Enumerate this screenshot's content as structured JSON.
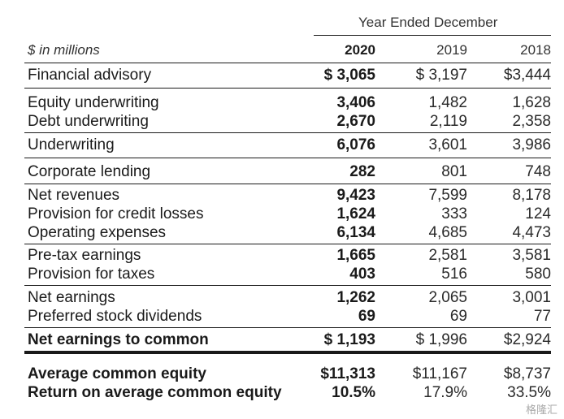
{
  "header": {
    "period_title": "Year Ended December",
    "units_label": "$ in millions",
    "years": [
      "2020",
      "2019",
      "2018"
    ]
  },
  "rows": [
    {
      "label": "Financial advisory",
      "v2020": "$ 3,065",
      "v2019": "$ 3,197",
      "v2018": "$3,444"
    },
    {
      "label": "Equity underwriting",
      "v2020": "3,406",
      "v2019": "1,482",
      "v2018": "1,628"
    },
    {
      "label": "Debt underwriting",
      "v2020": "2,670",
      "v2019": "2,119",
      "v2018": "2,358"
    },
    {
      "label": "Underwriting",
      "v2020": "6,076",
      "v2019": "3,601",
      "v2018": "3,986"
    },
    {
      "label": "Corporate lending",
      "v2020": "282",
      "v2019": "801",
      "v2018": "748"
    },
    {
      "label": "Net revenues",
      "v2020": "9,423",
      "v2019": "7,599",
      "v2018": "8,178"
    },
    {
      "label": "Provision for credit losses",
      "v2020": "1,624",
      "v2019": "333",
      "v2018": "124"
    },
    {
      "label": "Operating expenses",
      "v2020": "6,134",
      "v2019": "4,685",
      "v2018": "4,473"
    },
    {
      "label": "Pre-tax earnings",
      "v2020": "1,665",
      "v2019": "2,581",
      "v2018": "3,581"
    },
    {
      "label": "Provision for taxes",
      "v2020": "403",
      "v2019": "516",
      "v2018": "580"
    },
    {
      "label": "Net earnings",
      "v2020": "1,262",
      "v2019": "2,065",
      "v2018": "3,001"
    },
    {
      "label": "Preferred stock dividends",
      "v2020": "69",
      "v2019": "69",
      "v2018": "77"
    },
    {
      "label": "Net earnings to common",
      "v2020": "$ 1,193",
      "v2019": "$ 1,996",
      "v2018": "$2,924"
    },
    {
      "label": "Average common equity",
      "v2020": "$11,313",
      "v2019": "$11,167",
      "v2018": "$8,737"
    },
    {
      "label": "Return on average common equity",
      "v2020": "10.5%",
      "v2019": "17.9%",
      "v2018": "33.5%"
    }
  ],
  "watermark": "格隆汇"
}
